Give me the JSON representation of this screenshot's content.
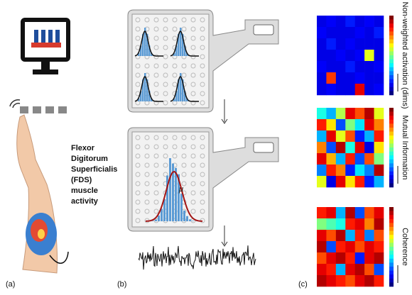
{
  "panels": {
    "a": "(a)",
    "b": "(b)",
    "c": "(c)"
  },
  "fds_label": [
    "Flexor",
    "Digitorum",
    "Superficialis",
    "(FDS)",
    "muscle",
    "activity"
  ],
  "mu": "μ",
  "heatmaps": [
    {
      "label": "Non-weighted activation (dims)",
      "values": [
        [
          0.1,
          0.12,
          0.1,
          0.15,
          0.1,
          0.12,
          0.1
        ],
        [
          0.12,
          0.1,
          0.1,
          0.1,
          0.12,
          0.1,
          0.15
        ],
        [
          0.1,
          0.15,
          0.1,
          0.12,
          0.1,
          0.1,
          0.1
        ],
        [
          0.1,
          0.1,
          0.12,
          0.1,
          0.12,
          0.6,
          0.1
        ],
        [
          0.12,
          0.1,
          0.1,
          0.15,
          0.1,
          0.1,
          0.12
        ],
        [
          0.1,
          0.82,
          0.1,
          0.1,
          0.12,
          0.1,
          0.1
        ],
        [
          0.1,
          0.12,
          0.1,
          0.1,
          0.9,
          0.1,
          0.12
        ]
      ]
    },
    {
      "label": "Mutual Information",
      "values": [
        [
          0.4,
          0.3,
          0.55,
          0.9,
          0.8,
          0.95,
          0.6
        ],
        [
          0.85,
          0.65,
          0.2,
          0.5,
          0.35,
          0.9,
          0.75
        ],
        [
          0.3,
          0.9,
          0.6,
          0.8,
          0.15,
          0.3,
          0.85
        ],
        [
          0.75,
          0.2,
          0.95,
          0.4,
          0.9,
          0.1,
          0.65
        ],
        [
          0.9,
          0.7,
          0.3,
          0.85,
          0.2,
          0.8,
          0.5
        ],
        [
          0.25,
          0.85,
          0.75,
          0.15,
          0.35,
          0.25,
          0.95
        ],
        [
          0.6,
          0.1,
          0.9,
          0.65,
          0.85,
          0.15,
          0.3
        ]
      ]
    },
    {
      "label": "Coherence",
      "values": [
        [
          0.85,
          0.9,
          0.3,
          0.95,
          0.2,
          0.8,
          0.9
        ],
        [
          0.5,
          0.45,
          0.4,
          0.85,
          0.9,
          0.75,
          0.95
        ],
        [
          0.9,
          0.8,
          0.95,
          0.3,
          0.85,
          0.25,
          0.8
        ],
        [
          0.95,
          0.2,
          0.85,
          0.9,
          0.8,
          0.9,
          0.85
        ],
        [
          0.8,
          0.9,
          0.95,
          0.85,
          0.15,
          0.9,
          0.95
        ],
        [
          0.9,
          0.85,
          0.3,
          0.9,
          0.95,
          0.8,
          0.2
        ],
        [
          0.95,
          0.9,
          0.85,
          0.8,
          0.9,
          0.95,
          0.85
        ]
      ]
    }
  ]
}
